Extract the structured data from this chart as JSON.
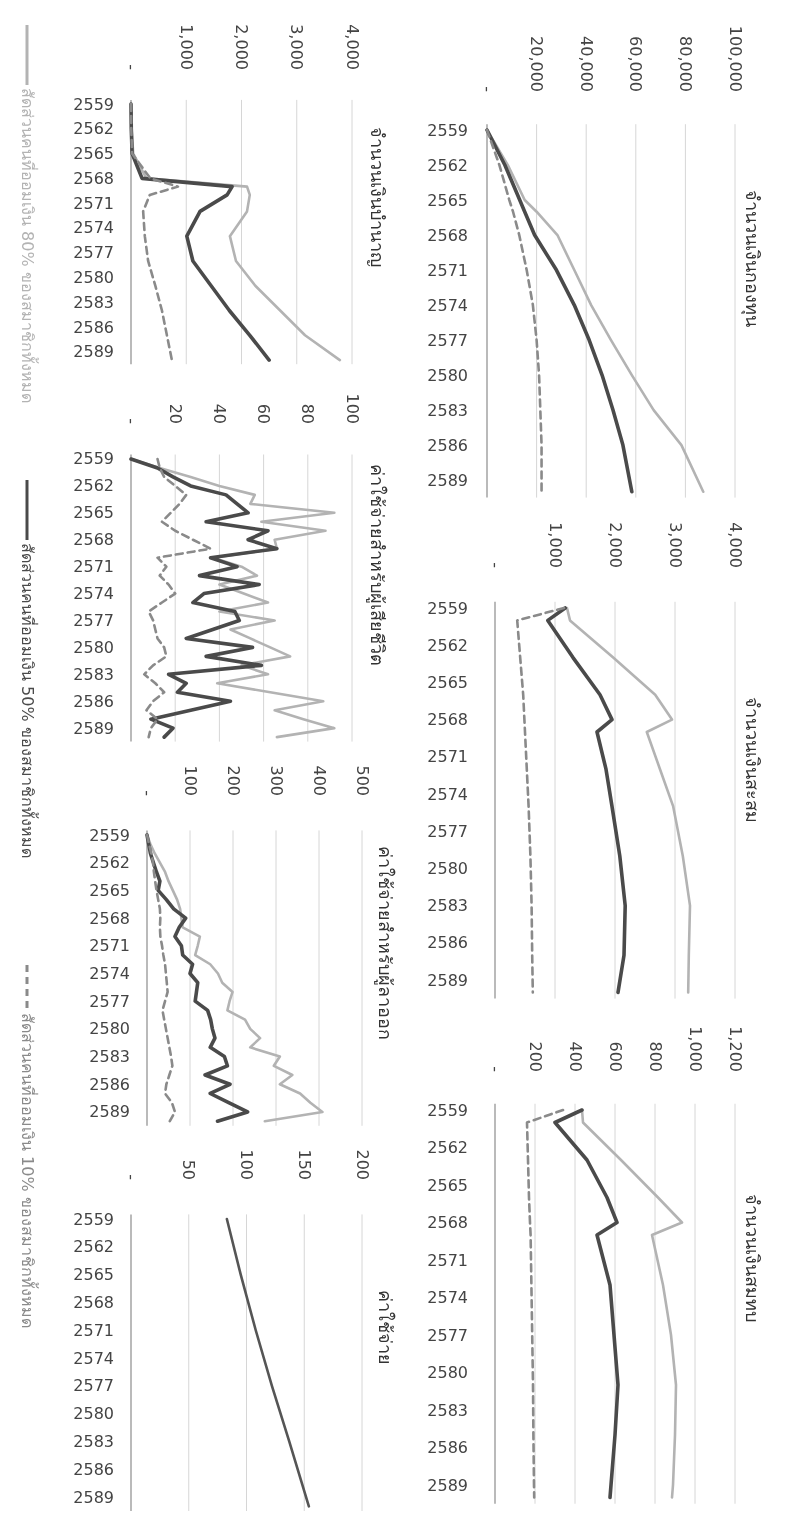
{
  "chart_data": [
    {
      "type": "line",
      "title": "จำนวนเงินกองทุน",
      "legend": "left",
      "grid": "x",
      "ylim": [
        2590.5,
        2558.5
      ],
      "yticks": [
        2559,
        2562,
        2565,
        2568,
        2571,
        2574,
        2577,
        2580,
        2583,
        2586,
        2589
      ],
      "xlim": [
        0,
        100000
      ],
      "xticks": [
        {
          "value": 0,
          "label": "-"
        },
        {
          "value": 20000,
          "label": "20,000"
        },
        {
          "value": 40000,
          "label": "40,000"
        },
        {
          "value": 60000,
          "label": "60,000"
        },
        {
          "value": 80000,
          "label": "80,000"
        },
        {
          "value": 100000,
          "label": "100,000"
        }
      ],
      "series": [
        {
          "name": "สัดส่วนคนที่ออมเงิน 80% ของสมาชิกทั้งหมด",
          "color": "#b3b3b3",
          "x": [
            0,
            8400,
            15200,
            20000,
            28400,
            35200,
            42000,
            50000,
            58400,
            67200,
            78400,
            87200
          ],
          "values": [
            2559,
            2562,
            2565,
            2566,
            2568,
            2571,
            2574,
            2577,
            2580,
            2583,
            2586,
            2590
          ]
        },
        {
          "name": "สัดส่วนคนที่ออมเงิน 50% ของสมาชิกทั้งหมด",
          "color": "#4a4a4a",
          "x": [
            0,
            7200,
            13200,
            15200,
            19200,
            28000,
            35200,
            41200,
            46400,
            50800,
            54800,
            58400
          ],
          "values": [
            2559,
            2562,
            2565,
            2566,
            2568,
            2571,
            2574,
            2577,
            2580,
            2583,
            2586,
            2590
          ]
        },
        {
          "name": "สัดส่วนคนที่ออมเงิน 10% ของสมาชิกทั้งหมด",
          "color": "#8a8a8a",
          "line_style": "dashed",
          "x": [
            0,
            5000,
            9000,
            10500,
            13000,
            16000,
            18500,
            20000,
            21000,
            21500,
            22000,
            22000
          ],
          "values": [
            2559,
            2562,
            2565,
            2566,
            2568,
            2571,
            2574,
            2577,
            2580,
            2583,
            2586,
            2590
          ]
        }
      ]
    },
    {
      "type": "line",
      "title": "จำนวนเงินสะสม",
      "grid": "x",
      "ylim": [
        2590.5,
        2558.5
      ],
      "yticks": [
        2559,
        2562,
        2565,
        2568,
        2571,
        2574,
        2577,
        2580,
        2583,
        2586,
        2589
      ],
      "xlim": [
        0,
        4000
      ],
      "xticks": [
        {
          "value": 0,
          "label": "-"
        },
        {
          "value": 1000,
          "label": "1,000"
        },
        {
          "value": 2000,
          "label": "2,000"
        },
        {
          "value": 3000,
          "label": "3,000"
        },
        {
          "value": 4000,
          "label": "4,000"
        }
      ],
      "series": [
        {
          "color": "#b3b3b3",
          "x": [
            1200,
            1250,
            1970,
            2670,
            2950,
            2530,
            2750,
            2970,
            3130,
            3250,
            3230,
            3220
          ],
          "values": [
            2559,
            2560,
            2563,
            2566,
            2568,
            2569,
            2572,
            2575,
            2579,
            2583,
            2587,
            2590
          ]
        },
        {
          "color": "#4a4a4a",
          "x": [
            1170,
            880,
            1300,
            1750,
            1950,
            1700,
            1850,
            1950,
            2080,
            2170,
            2150,
            2050
          ],
          "values": [
            2559,
            2560,
            2563,
            2566,
            2568,
            2569,
            2572,
            2575,
            2579,
            2583,
            2587,
            2590
          ]
        },
        {
          "color": "#8a8a8a",
          "line_style": "dashed",
          "x": [
            1150,
            370,
            420,
            470,
            490,
            500,
            530,
            560,
            590,
            610,
            620,
            630
          ],
          "values": [
            2559,
            2560,
            2563,
            2566,
            2568,
            2569,
            2572,
            2575,
            2579,
            2583,
            2587,
            2590
          ]
        }
      ]
    },
    {
      "type": "line",
      "title": "จำนวนเงินสมทบ",
      "grid": "x",
      "ylim": [
        2590.5,
        2558.5
      ],
      "yticks": [
        2559,
        2562,
        2565,
        2568,
        2571,
        2574,
        2577,
        2580,
        2583,
        2586,
        2589
      ],
      "xlim": [
        0,
        1200
      ],
      "xticks": [
        {
          "value": 0,
          "label": "-"
        },
        200,
        400,
        600,
        800,
        {
          "value": 1000,
          "label": "1,000"
        },
        {
          "value": 1200,
          "label": "1,200"
        }
      ],
      "series": [
        {
          "color": "#b3b3b3",
          "x": [
            435,
            440,
            630,
            815,
            935,
            785,
            840,
            880,
            905,
            900,
            890,
            885
          ],
          "values": [
            2559,
            2560,
            2563,
            2566,
            2568,
            2569,
            2573,
            2577,
            2581,
            2585,
            2589,
            2590
          ]
        },
        {
          "color": "#4a4a4a",
          "x": [
            435,
            300,
            460,
            560,
            610,
            510,
            575,
            595,
            615,
            600,
            580,
            575
          ],
          "values": [
            2559,
            2560,
            2563,
            2566,
            2568,
            2569,
            2573,
            2577,
            2581,
            2585,
            2589,
            2590
          ]
        },
        {
          "color": "#8a8a8a",
          "line_style": "dashed",
          "x": [
            340,
            160,
            165,
            170,
            175,
            178,
            182,
            186,
            190,
            192,
            195,
            196
          ],
          "values": [
            2559,
            2560,
            2563,
            2566,
            2568,
            2569,
            2573,
            2577,
            2581,
            2585,
            2589,
            2590
          ]
        }
      ]
    },
    {
      "type": "line",
      "title": "จำนวนเงินบำนาญ",
      "grid": "x",
      "ylim": [
        2590.5,
        2558.5
      ],
      "yticks": [
        2559,
        2562,
        2565,
        2568,
        2571,
        2574,
        2577,
        2580,
        2583,
        2586,
        2589
      ],
      "xlim": [
        0,
        4000
      ],
      "xticks": [
        {
          "value": 0,
          "label": "-"
        },
        {
          "value": 1000,
          "label": "1,000"
        },
        {
          "value": 2000,
          "label": "2,000"
        },
        {
          "value": 3000,
          "label": "3,000"
        },
        {
          "value": 4000,
          "label": "4,000"
        }
      ],
      "series": [
        {
          "color": "#b3b3b3",
          "x": [
            0,
            10,
            40,
            280,
            2100,
            2150,
            2100,
            1790,
            1900,
            2250,
            2700,
            3150,
            3780
          ],
          "values": [
            2559,
            2562,
            2565,
            2568,
            2569,
            2570,
            2572,
            2575,
            2578,
            2581,
            2584,
            2587,
            2590
          ]
        },
        {
          "color": "#4a4a4a",
          "x": [
            0,
            5,
            20,
            200,
            1830,
            1740,
            1250,
            1010,
            1120,
            1450,
            1780,
            2150,
            2500
          ],
          "values": [
            2559,
            2562,
            2565,
            2568,
            2569,
            2570,
            2572,
            2575,
            2578,
            2581,
            2584,
            2587,
            2590
          ]
        },
        {
          "color": "#8a8a8a",
          "line_style": "dashed",
          "x": [
            0,
            5,
            20,
            350,
            850,
            340,
            220,
            250,
            310,
            440,
            560,
            650,
            740
          ],
          "values": [
            2559,
            2562,
            2565,
            2568,
            2569,
            2570,
            2572,
            2575,
            2578,
            2581,
            2584,
            2587,
            2590
          ]
        }
      ]
    },
    {
      "type": "line",
      "title": "ค่าใช้จ่ายสำหรับผู้เสียชีวิต",
      "grid": "x",
      "ylim": [
        2590.5,
        2558.5
      ],
      "yticks": [
        2559,
        2562,
        2565,
        2568,
        2571,
        2574,
        2577,
        2580,
        2583,
        2586,
        2589
      ],
      "xlim": [
        0,
        100
      ],
      "xticks": [
        {
          "value": 0,
          "label": "-"
        },
        20,
        40,
        60,
        80,
        100
      ],
      "series": [
        {
          "color": "#b3b3b3",
          "x": [
            0,
            13,
            27,
            40,
            56,
            54,
            92,
            59,
            88,
            65,
            66,
            37,
            50,
            57,
            40,
            51,
            62,
            40,
            65,
            45,
            54,
            63,
            72,
            50,
            62,
            39,
            63,
            87,
            65,
            78,
            92,
            66
          ],
          "values": [
            2559,
            2560,
            2561,
            2562,
            2563,
            2564,
            2565,
            2566,
            2567,
            2568,
            2569,
            2570,
            2571,
            2572,
            2573,
            2574,
            2575,
            2576,
            2577,
            2578,
            2579,
            2580,
            2581,
            2582,
            2583,
            2584,
            2585,
            2586,
            2587,
            2588,
            2589,
            2590
          ]
        },
        {
          "color": "#4a4a4a",
          "x": [
            0,
            12,
            19,
            27,
            43,
            48,
            53,
            34,
            62,
            53,
            66,
            36,
            48,
            31,
            58,
            33,
            28,
            47,
            49,
            37,
            25,
            55,
            34,
            59,
            17,
            25,
            21,
            45,
            27,
            9,
            19,
            15
          ],
          "values": [
            2559,
            2560,
            2561,
            2562,
            2563,
            2564,
            2565,
            2566,
            2567,
            2568,
            2569,
            2570,
            2571,
            2572,
            2573,
            2574,
            2575,
            2576,
            2577,
            2578,
            2579,
            2580,
            2581,
            2582,
            2583,
            2584,
            2585,
            2586,
            2587,
            2588,
            2589,
            2590
          ]
        },
        {
          "color": "#8a8a8a",
          "line_style": "dashed",
          "x": [
            12,
            13,
            15,
            20,
            25,
            22,
            18,
            14,
            20,
            28,
            36,
            12,
            16,
            13,
            17,
            20,
            14,
            8,
            10,
            11,
            12,
            15,
            16,
            10,
            6,
            11,
            15,
            10,
            7,
            12,
            9,
            8
          ],
          "values": [
            2559,
            2560,
            2561,
            2562,
            2563,
            2564,
            2565,
            2566,
            2567,
            2568,
            2569,
            2570,
            2571,
            2572,
            2573,
            2574,
            2575,
            2576,
            2577,
            2578,
            2579,
            2580,
            2581,
            2582,
            2583,
            2584,
            2585,
            2586,
            2587,
            2588,
            2589,
            2590
          ]
        }
      ]
    },
    {
      "type": "line",
      "title": "ค่าใช้จ่ายสำหรับผู้ลาออก",
      "grid": "x",
      "ylim": [
        2590.5,
        2558.5
      ],
      "yticks": [
        2559,
        2562,
        2565,
        2568,
        2571,
        2574,
        2577,
        2580,
        2583,
        2586,
        2589
      ],
      "xlim": [
        0,
        500
      ],
      "xticks": [
        {
          "value": 0,
          "label": "-"
        },
        100,
        200,
        300,
        400,
        500
      ],
      "series": [
        {
          "color": "#b3b3b3",
          "x": [
            0,
            8,
            18,
            30,
            42,
            50,
            60,
            70,
            77,
            80,
            83,
            123,
            118,
            112,
            147,
            165,
            175,
            199,
            192,
            187,
            228,
            240,
            263,
            240,
            309,
            295,
            338,
            309,
            356,
            380,
            408,
            274
          ],
          "values": [
            2559,
            2560,
            2561,
            2562,
            2563,
            2564,
            2565,
            2566,
            2567,
            2568,
            2569,
            2570,
            2571,
            2572,
            2573,
            2574,
            2575,
            2576,
            2577,
            2578,
            2579,
            2580,
            2581,
            2582,
            2583,
            2584,
            2585,
            2586,
            2587,
            2588,
            2589,
            2590
          ]
        },
        {
          "color": "#4a4a4a",
          "x": [
            0,
            4,
            8,
            15,
            22,
            30,
            26,
            45,
            62,
            90,
            75,
            65,
            80,
            83,
            106,
            100,
            118,
            115,
            112,
            141,
            148,
            152,
            158,
            147,
            180,
            187,
            135,
            193,
            147,
            190,
            234,
            164
          ],
          "values": [
            2559,
            2560,
            2561,
            2562,
            2563,
            2564,
            2565,
            2566,
            2567,
            2568,
            2569,
            2570,
            2571,
            2572,
            2573,
            2574,
            2575,
            2576,
            2577,
            2578,
            2579,
            2580,
            2581,
            2582,
            2583,
            2584,
            2585,
            2586,
            2587,
            2588,
            2589,
            2590
          ]
        },
        {
          "color": "#8a8a8a",
          "line_style": "dashed",
          "x": [
            0,
            5,
            10,
            14,
            16,
            19,
            22,
            26,
            30,
            31,
            30,
            31,
            35,
            38,
            42,
            44,
            46,
            48,
            42,
            36,
            40,
            44,
            48,
            52,
            56,
            59,
            52,
            45,
            42,
            58,
            65,
            53
          ],
          "values": [
            2559,
            2560,
            2561,
            2562,
            2563,
            2564,
            2565,
            2566,
            2567,
            2568,
            2569,
            2570,
            2571,
            2572,
            2573,
            2574,
            2575,
            2576,
            2577,
            2578,
            2579,
            2580,
            2581,
            2582,
            2583,
            2584,
            2585,
            2586,
            2587,
            2588,
            2589,
            2590
          ]
        }
      ]
    },
    {
      "type": "line",
      "title": "ค่าใช้จ่าย",
      "grid": "x",
      "ylim": [
        2590.5,
        2558.5
      ],
      "yticks": [
        2559,
        2562,
        2565,
        2568,
        2571,
        2574,
        2577,
        2580,
        2583,
        2586,
        2589
      ],
      "xlim": [
        0,
        200
      ],
      "xticks": [
        {
          "value": 0,
          "label": "-"
        },
        50,
        100,
        150,
        200
      ],
      "series": [
        {
          "color": "#555555",
          "x": [
            83,
            95,
            108,
            122,
            137,
            154
          ],
          "values": [
            2559,
            2565,
            2571,
            2577,
            2583,
            2590
          ]
        }
      ]
    }
  ]
}
